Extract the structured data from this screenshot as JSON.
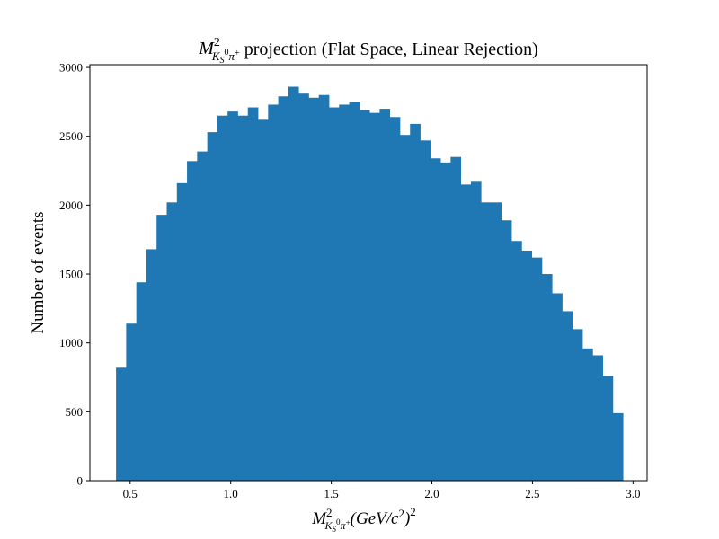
{
  "chart_data": {
    "type": "bar",
    "title": {
      "symbol": "M",
      "sup": "2",
      "sub_main": "K",
      "sub_sub": "S",
      "sub_sup": "0",
      "sub_tail": "π",
      "sub_tail_sup": "+",
      "rest": " projection (Flat Space, Linear Rejection)"
    },
    "xlabel": {
      "symbol": "M",
      "sup": "2",
      "sub_main": "K",
      "sub_sub": "S",
      "sub_sup": "0",
      "sub_tail": "π",
      "sub_tail_sup": "+",
      "unit_open": "(GeV/c",
      "unit_sup": "2",
      "unit_close": ")",
      "outer_sup": "2"
    },
    "ylabel": "Number of events",
    "xlim": [
      0.3,
      3.07
    ],
    "ylim": [
      0,
      3020
    ],
    "x_ticks": [
      0.5,
      1.0,
      1.5,
      2.0,
      2.5,
      3.0
    ],
    "x_tick_labels": [
      "0.5",
      "1.0",
      "1.5",
      "2.0",
      "2.5",
      "3.0"
    ],
    "y_ticks": [
      0,
      500,
      1000,
      1500,
      2000,
      2500,
      3000
    ],
    "y_tick_labels": [
      "0",
      "500",
      "1000",
      "1500",
      "2000",
      "2500",
      "3000"
    ],
    "bin_start": 0.43,
    "bin_end": 2.95,
    "values": [
      820,
      1140,
      1440,
      1680,
      1930,
      2020,
      2160,
      2320,
      2390,
      2530,
      2650,
      2680,
      2650,
      2710,
      2620,
      2730,
      2790,
      2860,
      2810,
      2780,
      2800,
      2710,
      2730,
      2750,
      2690,
      2670,
      2700,
      2640,
      2510,
      2590,
      2470,
      2340,
      2310,
      2350,
      2150,
      2170,
      2020,
      2020,
      1890,
      1740,
      1670,
      1620,
      1500,
      1360,
      1230,
      1100,
      960,
      910,
      760,
      490
    ],
    "bar_color": "#1f77b4",
    "grid": false
  }
}
